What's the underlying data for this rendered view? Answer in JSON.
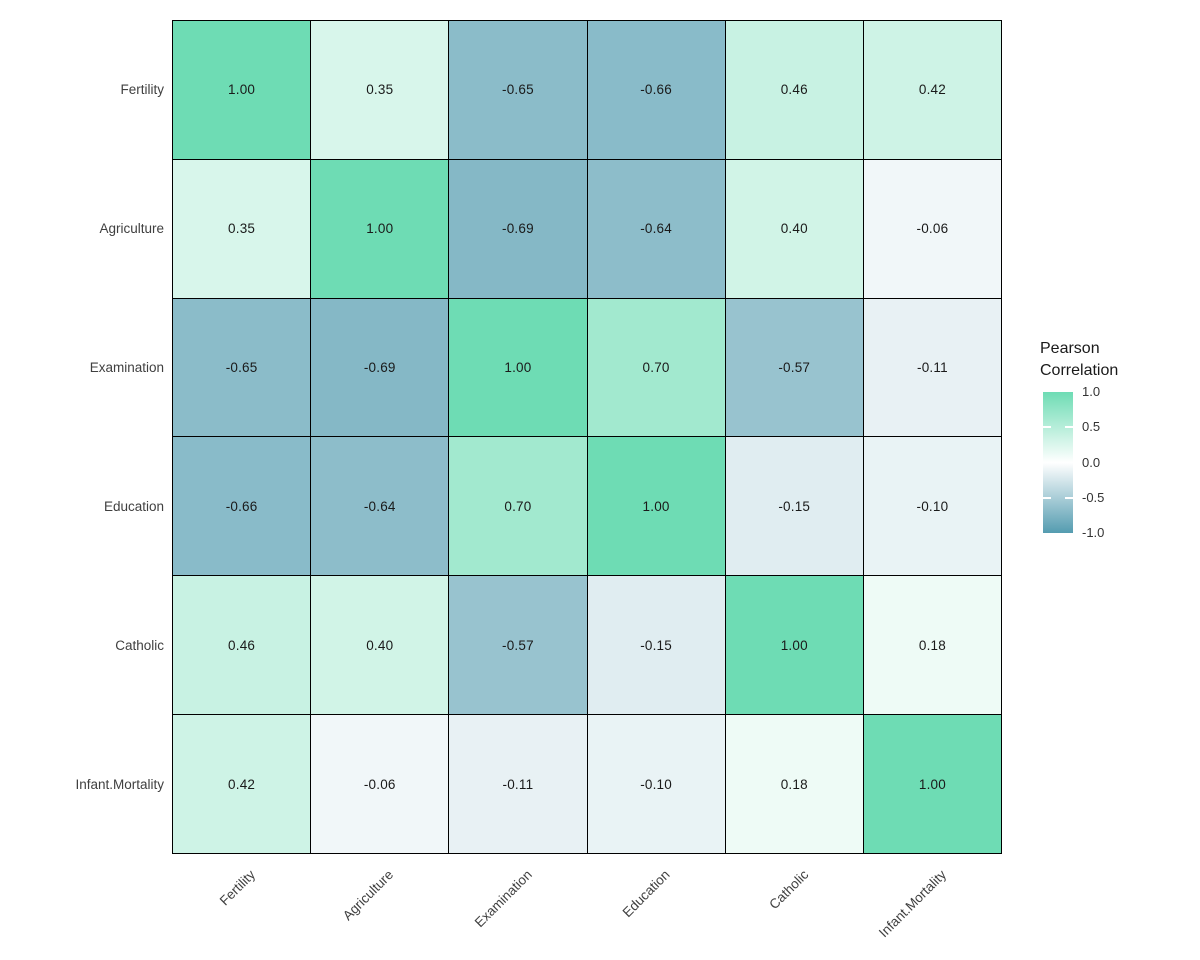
{
  "chart_data": {
    "type": "heatmap",
    "title": "",
    "x_labels": [
      "Fertility",
      "Agriculture",
      "Examination",
      "Education",
      "Catholic",
      "Infant.Mortality"
    ],
    "y_labels": [
      "Fertility",
      "Agriculture",
      "Examination",
      "Education",
      "Catholic",
      "Infant.Mortality"
    ],
    "matrix": [
      [
        1.0,
        0.35,
        -0.65,
        -0.66,
        0.46,
        0.42
      ],
      [
        0.35,
        1.0,
        -0.69,
        -0.64,
        0.4,
        -0.06
      ],
      [
        -0.65,
        -0.69,
        1.0,
        0.7,
        -0.57,
        -0.11
      ],
      [
        -0.66,
        -0.64,
        0.7,
        1.0,
        -0.15,
        -0.1
      ],
      [
        0.46,
        0.4,
        -0.57,
        -0.15,
        1.0,
        0.18
      ],
      [
        0.42,
        -0.06,
        -0.11,
        -0.1,
        0.18,
        1.0
      ]
    ],
    "cell_value_decimals": 2,
    "legend": {
      "title_lines": [
        "Pearson",
        "Correlation"
      ],
      "ticks": [
        "1.0",
        "0.5",
        "0.0",
        "-0.5",
        "-1.0"
      ],
      "tick_values": [
        1.0,
        0.5,
        0.0,
        -0.5,
        -1.0
      ],
      "range": [
        -1.0,
        1.0
      ],
      "position": "right"
    },
    "colors": {
      "positive_max": "#6EDCB4",
      "zero": "#FFFFFF",
      "negative_min": "#549CB0",
      "cell_border": "#000000",
      "cell_text": "#1A1A1A",
      "axis_text": "#404040",
      "legend_text": "#333333",
      "legend_title_text": "#1A1A1A",
      "background": "#FFFFFF"
    },
    "grid": "none",
    "x_tick_angle": 45
  }
}
